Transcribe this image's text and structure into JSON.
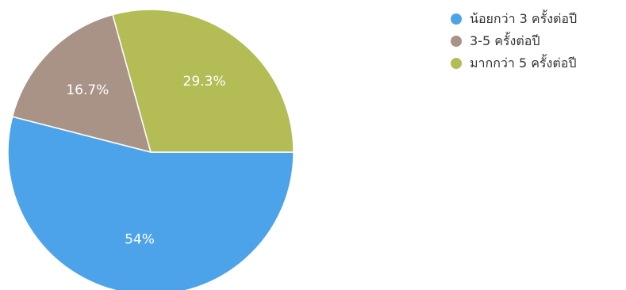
{
  "chart_data": {
    "type": "pie",
    "categories": [
      "น้อยกว่า 3 ครั้งต่อปี",
      "3-5 ครั้งต่อปี",
      "มากกว่า 5 ครั้งต่อปี"
    ],
    "values": [
      54,
      16.7,
      29.3
    ],
    "data_labels": [
      "54%",
      "16.7%",
      "29.3%"
    ],
    "colors": [
      "#4da3ea",
      "#a99386",
      "#b4bc55"
    ],
    "title": "",
    "legend_position": "top-right"
  }
}
